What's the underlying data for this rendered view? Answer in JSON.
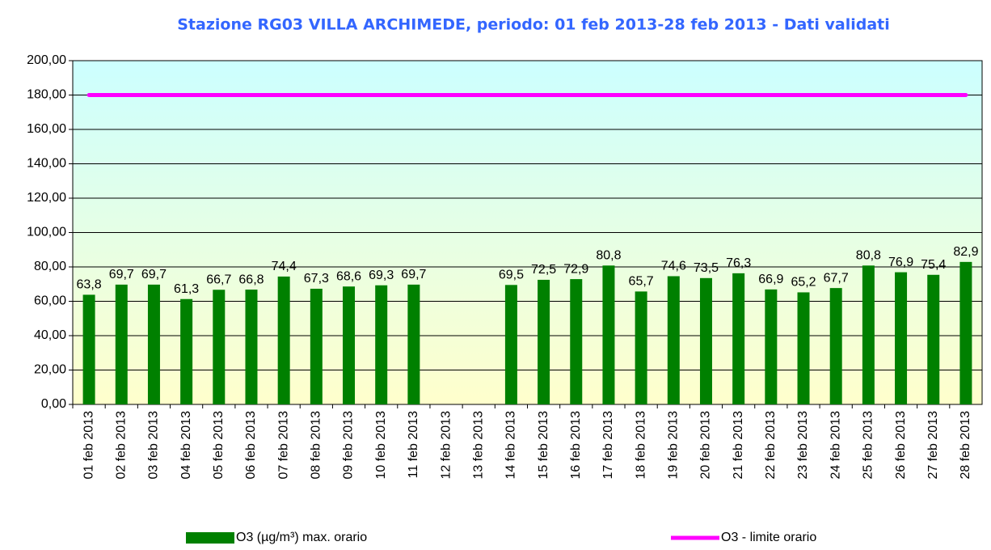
{
  "chart_data": {
    "type": "bar",
    "title": "Stazione RG03 VILLA ARCHIMEDE, periodo: 01 feb 2013-28 feb 2013 - Dati validati",
    "categories": [
      "01 feb 2013",
      "02 feb 2013",
      "03 feb 2013",
      "04 feb 2013",
      "05 feb 2013",
      "06 feb 2013",
      "07 feb 2013",
      "08 feb 2013",
      "09 feb 2013",
      "10 feb 2013",
      "11 feb 2013",
      "12 feb 2013",
      "13 feb 2013",
      "14 feb 2013",
      "15 feb 2013",
      "16 feb 2013",
      "17 feb 2013",
      "18 feb 2013",
      "19 feb 2013",
      "20 feb 2013",
      "21 feb 2013",
      "22 feb 2013",
      "23 feb 2013",
      "24 feb 2013",
      "25 feb 2013",
      "26 feb 2013",
      "27 feb 2013",
      "28 feb 2013"
    ],
    "series": [
      {
        "name": "O3 (µg/m³) max. orario",
        "type": "bar",
        "color": "#008000",
        "values": [
          63.8,
          69.7,
          69.7,
          61.3,
          66.7,
          66.8,
          74.4,
          67.3,
          68.6,
          69.3,
          69.7,
          null,
          null,
          69.5,
          72.5,
          72.9,
          80.8,
          65.7,
          74.6,
          73.5,
          76.3,
          66.9,
          65.2,
          67.7,
          80.8,
          76.9,
          75.4,
          82.9
        ],
        "value_labels": [
          "63,8",
          "69,7",
          "69,7",
          "61,3",
          "66,7",
          "66,8",
          "74,4",
          "67,3",
          "68,6",
          "69,3",
          "69,7",
          null,
          null,
          "69,5",
          "72,5",
          "72,9",
          "80,8",
          "65,7",
          "74,6",
          "73,5",
          "76,3",
          "66,9",
          "65,2",
          "67,7",
          "80,8",
          "76,9",
          "75,4",
          "82,9"
        ]
      },
      {
        "name": "O3 - limite orario",
        "type": "line",
        "color": "#ff00ff",
        "values": [
          180,
          180,
          180,
          180,
          180,
          180,
          180,
          180,
          180,
          180,
          180,
          180,
          180,
          180,
          180,
          180,
          180,
          180,
          180,
          180,
          180,
          180,
          180,
          180,
          180,
          180,
          180,
          180
        ]
      }
    ],
    "ylim": [
      0,
      200
    ],
    "yticks": [
      {
        "value": 0,
        "label": "0,00"
      },
      {
        "value": 20,
        "label": "20,00"
      },
      {
        "value": 40,
        "label": "40,00"
      },
      {
        "value": 60,
        "label": "60,00"
      },
      {
        "value": 80,
        "label": "80,00"
      },
      {
        "value": 100,
        "label": "100,00"
      },
      {
        "value": 120,
        "label": "120,00"
      },
      {
        "value": 140,
        "label": "140,00"
      },
      {
        "value": 160,
        "label": "160,00"
      },
      {
        "value": 180,
        "label": "180,00"
      },
      {
        "value": 200,
        "label": "200,00"
      }
    ],
    "grid": true,
    "legend": "bottom"
  }
}
